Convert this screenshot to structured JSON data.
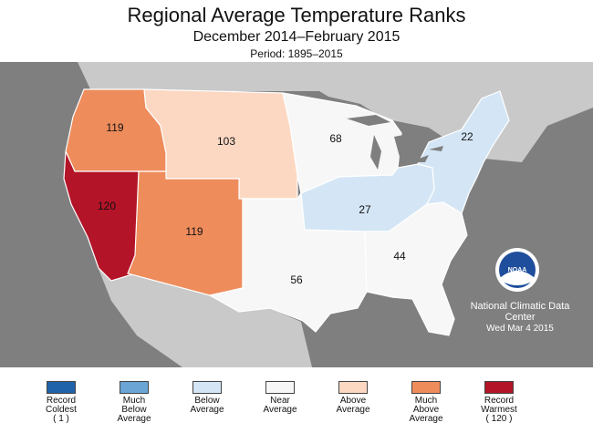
{
  "header": {
    "title": "Regional Average Temperature Ranks",
    "subtitle": "December 2014–February 2015",
    "period": "Period: 1895–2015"
  },
  "credit": {
    "center": "National Climatic Data Center",
    "date": "Wed Mar  4 2015",
    "logo_text": "NOAA"
  },
  "colors": {
    "ocean": "#7f7f7f",
    "land_other": "#c9c9c9",
    "borders": "#ffffff",
    "record_coldest": "#1f63ab",
    "much_below": "#6aa5d5",
    "below": "#d4e6f5",
    "near": "#f7f7f7",
    "above": "#fcd8c3",
    "much_above": "#ef8c5c",
    "record_warmest": "#b31428"
  },
  "regions": [
    {
      "name": "Northwest",
      "rank": "119",
      "category": "much_above"
    },
    {
      "name": "West",
      "rank": "120",
      "category": "record_warmest"
    },
    {
      "name": "Northern Rockies and Plains",
      "rank": "103",
      "category": "above"
    },
    {
      "name": "Southwest",
      "rank": "119",
      "category": "much_above"
    },
    {
      "name": "Upper Midwest",
      "rank": "68",
      "category": "near"
    },
    {
      "name": "South",
      "rank": "56",
      "category": "near"
    },
    {
      "name": "Ohio Valley",
      "rank": "27",
      "category": "below"
    },
    {
      "name": "Southeast",
      "rank": "44",
      "category": "near"
    },
    {
      "name": "Northeast",
      "rank": "22",
      "category": "below"
    }
  ],
  "legend": [
    {
      "label": "Record\nColdest\n( 1 )",
      "color": "#1f63ab"
    },
    {
      "label": "Much\nBelow\nAverage",
      "color": "#6aa5d5"
    },
    {
      "label": "Below\nAverage",
      "color": "#d4e6f5"
    },
    {
      "label": "Near\nAverage",
      "color": "#f7f7f7"
    },
    {
      "label": "Above\nAverage",
      "color": "#fcd8c3"
    },
    {
      "label": "Much\nAbove\nAverage",
      "color": "#ef8c5c"
    },
    {
      "label": "Record\nWarmest\n( 120 )",
      "color": "#b31428"
    }
  ]
}
